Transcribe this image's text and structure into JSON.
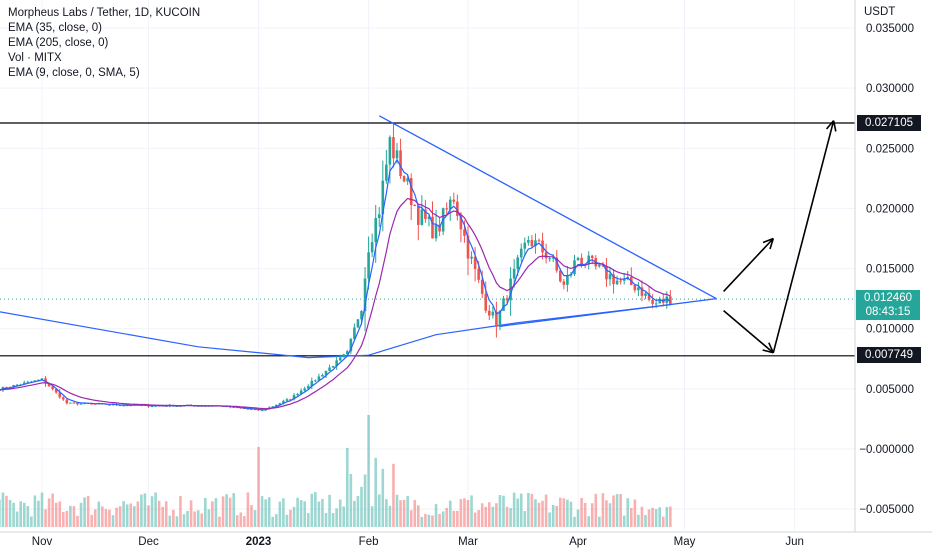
{
  "legend": {
    "title": "Morpheus Labs / Tether, 1D, KUCOIN",
    "ema35": "EMA (35, close, 0)",
    "ema205": "EMA (205, close, 0)",
    "vol": "Vol · MITX",
    "ema9": "EMA (9, close, 0, SMA, 5)"
  },
  "axis": {
    "unit": "USDT",
    "y_ticks": [
      "0.035000",
      "0.030000",
      "0.025000",
      "0.020000",
      "0.015000",
      "0.010000",
      "0.005000",
      "−0.000000",
      "−0.005000"
    ],
    "x_ticks": [
      "Nov",
      "Dec",
      "2023",
      "Feb",
      "Mar",
      "Apr",
      "May",
      "Jun"
    ]
  },
  "price_tags": {
    "resistance": "0.027105",
    "support": "0.007749",
    "last_price": "0.012460",
    "countdown": "08:43:15"
  },
  "colors": {
    "up": "#26a69a",
    "down": "#ef5350",
    "ema35": "#2962ff",
    "ema205": "#2962ff",
    "ema9": "#9c27b0",
    "trendline": "#2962ff",
    "level": "#000000"
  },
  "chart_data": {
    "type": "candlestick",
    "symbol": "MITX/USDT",
    "exchange": "KUCOIN",
    "interval": "1D",
    "y_range": [
      -0.0055,
      0.0365
    ],
    "horizontal_levels": [
      0.027105,
      0.007749
    ],
    "last_price": 0.01246,
    "price_anchors": [
      {
        "date": "2022-10-20",
        "price": 0.005
      },
      {
        "date": "2022-11-01",
        "price": 0.0058
      },
      {
        "date": "2022-11-08",
        "price": 0.0038
      },
      {
        "date": "2022-12-01",
        "price": 0.0036
      },
      {
        "date": "2022-12-20",
        "price": 0.0036
      },
      {
        "date": "2023-01-02",
        "price": 0.0032
      },
      {
        "date": "2023-01-10",
        "price": 0.0042
      },
      {
        "date": "2023-01-18",
        "price": 0.006
      },
      {
        "date": "2023-01-26",
        "price": 0.008
      },
      {
        "date": "2023-01-30",
        "price": 0.012
      },
      {
        "date": "2023-02-01",
        "price": 0.017
      },
      {
        "date": "2023-02-04",
        "price": 0.02
      },
      {
        "date": "2023-02-07",
        "price": 0.0255
      },
      {
        "date": "2023-02-11",
        "price": 0.0225
      },
      {
        "date": "2023-02-15",
        "price": 0.0195
      },
      {
        "date": "2023-02-20",
        "price": 0.018
      },
      {
        "date": "2023-02-25",
        "price": 0.021
      },
      {
        "date": "2023-03-01",
        "price": 0.0165
      },
      {
        "date": "2023-03-06",
        "price": 0.012
      },
      {
        "date": "2023-03-09",
        "price": 0.0105
      },
      {
        "date": "2023-03-14",
        "price": 0.0145
      },
      {
        "date": "2023-03-18",
        "price": 0.0175
      },
      {
        "date": "2023-03-24",
        "price": 0.016
      },
      {
        "date": "2023-03-28",
        "price": 0.0135
      },
      {
        "date": "2023-04-01",
        "price": 0.016
      },
      {
        "date": "2023-04-06",
        "price": 0.015
      },
      {
        "date": "2023-04-12",
        "price": 0.014
      },
      {
        "date": "2023-04-18",
        "price": 0.0135
      },
      {
        "date": "2023-04-22",
        "price": 0.012
      },
      {
        "date": "2023-04-27",
        "price": 0.0125
      }
    ],
    "trendlines": [
      {
        "name": "descending-resistance",
        "from": {
          "date": "2023-02-04",
          "price": 0.0277
        },
        "to": {
          "date": "2023-05-10",
          "price": 0.0125
        }
      },
      {
        "name": "ascending-support",
        "from": {
          "date": "2023-03-10",
          "price": 0.0102
        },
        "to": {
          "date": "2023-05-10",
          "price": 0.0125
        }
      }
    ],
    "arrows": [
      {
        "from": {
          "date": "2023-05-12",
          "price": 0.0131
        },
        "to": {
          "date": "2023-05-26",
          "price": 0.0175
        }
      },
      {
        "from": {
          "date": "2023-05-12",
          "price": 0.0115
        },
        "to": {
          "date": "2023-05-26",
          "price": 0.008
        }
      },
      {
        "from": {
          "date": "2023-05-26",
          "price": 0.008
        },
        "to": {
          "date": "2023-06-12",
          "price": 0.0273
        }
      }
    ]
  }
}
